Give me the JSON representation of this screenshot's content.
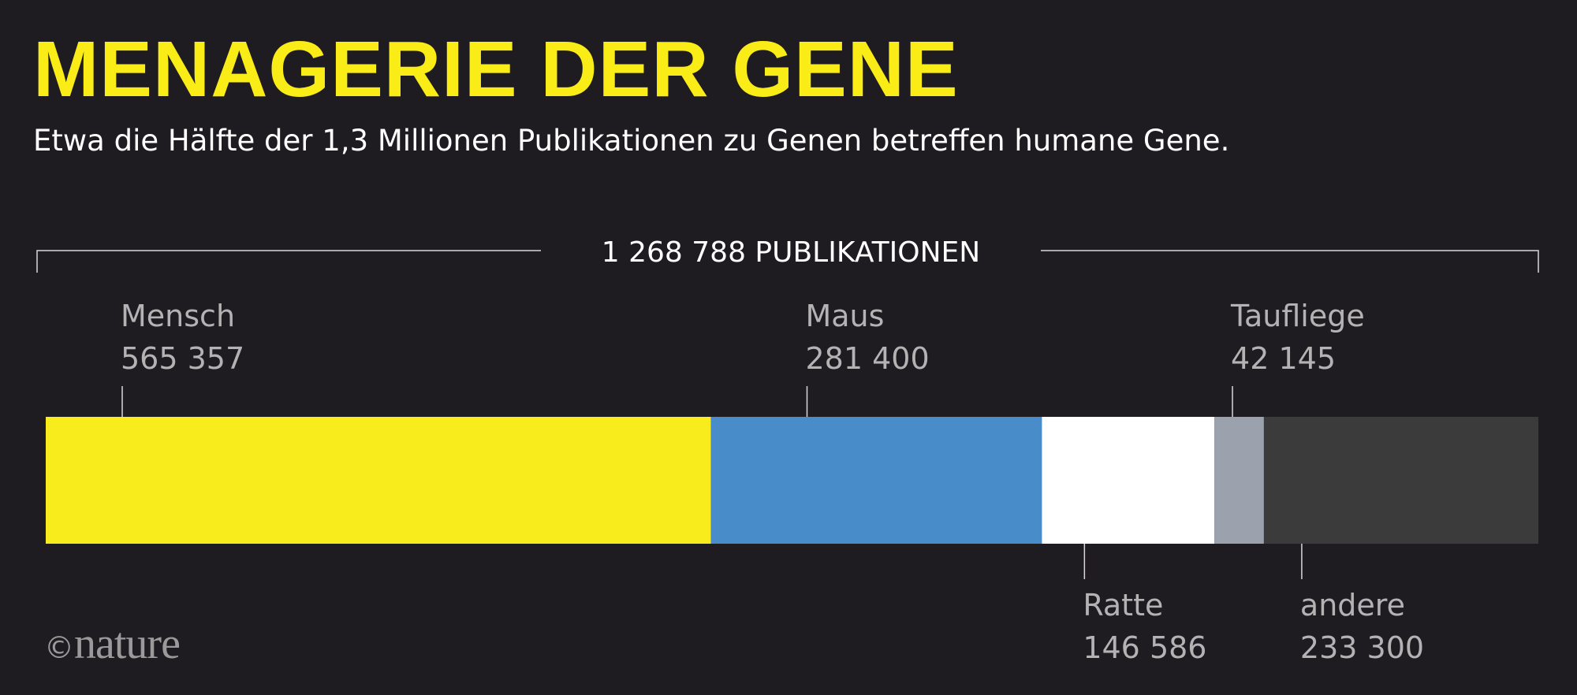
{
  "header": {
    "title": "MENAGERIE DER GENE",
    "subtitle": "Etwa die Hälfte der 1,3 Millionen Publikationen zu Genen betreffen humane Gene."
  },
  "chart_data": {
    "type": "bar",
    "orientation": "horizontal-stacked",
    "total_label": "1 268 788 PUBLIKATIONEN",
    "total": 1268788,
    "series": [
      {
        "name": "Mensch",
        "value": 565357,
        "value_label": "565 357",
        "color": "#f9ec1d",
        "label_side": "top"
      },
      {
        "name": "Maus",
        "value": 281400,
        "value_label": "281 400",
        "color": "#488dc9",
        "label_side": "top"
      },
      {
        "name": "Ratte",
        "value": 146586,
        "value_label": "146 586",
        "color": "#ffffff",
        "label_side": "bottom"
      },
      {
        "name": "Taufliege",
        "value": 42145,
        "value_label": "42 145",
        "color": "#9ba2ad",
        "label_side": "top"
      },
      {
        "name": "andere",
        "value": 233300,
        "value_label": "233 300",
        "color": "#3b3b3b",
        "label_side": "bottom"
      }
    ]
  },
  "footer": {
    "copyright_symbol": "©",
    "brand": "nature"
  }
}
